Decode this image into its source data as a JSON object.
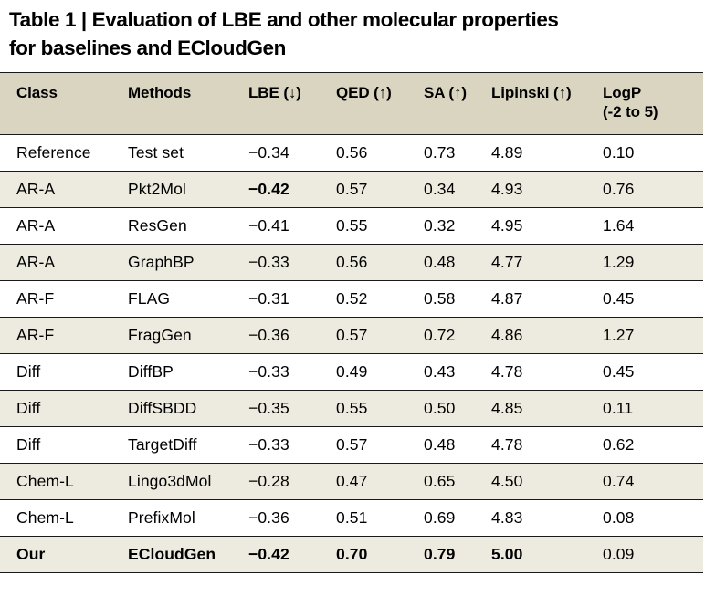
{
  "title": {
    "lines": [
      "Table 1 | Evaluation of LBE and other molecular properties",
      "for baselines and ECloudGen"
    ]
  },
  "table": {
    "columns": [
      {
        "label": "Class",
        "sublabel": ""
      },
      {
        "label": "Methods",
        "sublabel": ""
      },
      {
        "label": "LBE (↓)",
        "sublabel": ""
      },
      {
        "label": "QED (↑)",
        "sublabel": ""
      },
      {
        "label": "SA (↑)",
        "sublabel": ""
      },
      {
        "label": "Lipinski (↑)",
        "sublabel": ""
      },
      {
        "label": "LogP",
        "sublabel": "(-2 to 5)"
      }
    ],
    "rows": [
      {
        "cells": [
          "Reference",
          "Test set",
          "−0.34",
          "0.56",
          "0.73",
          "4.89",
          "0.10"
        ],
        "bold_cells": []
      },
      {
        "cells": [
          "AR-A",
          "Pkt2Mol",
          "−0.42",
          "0.57",
          "0.34",
          "4.93",
          "0.76"
        ],
        "bold_cells": [
          2
        ]
      },
      {
        "cells": [
          "AR-A",
          "ResGen",
          "−0.41",
          "0.55",
          "0.32",
          "4.95",
          "1.64"
        ],
        "bold_cells": []
      },
      {
        "cells": [
          "AR-A",
          "GraphBP",
          "−0.33",
          "0.56",
          "0.48",
          "4.77",
          "1.29"
        ],
        "bold_cells": []
      },
      {
        "cells": [
          "AR-F",
          "FLAG",
          "−0.31",
          "0.52",
          "0.58",
          "4.87",
          "0.45"
        ],
        "bold_cells": []
      },
      {
        "cells": [
          "AR-F",
          "FragGen",
          "−0.36",
          "0.57",
          "0.72",
          "4.86",
          "1.27"
        ],
        "bold_cells": []
      },
      {
        "cells": [
          "Diff",
          "DiffBP",
          "−0.33",
          "0.49",
          "0.43",
          "4.78",
          "0.45"
        ],
        "bold_cells": []
      },
      {
        "cells": [
          "Diff",
          "DiffSBDD",
          "−0.35",
          "0.55",
          "0.50",
          "4.85",
          "0.11"
        ],
        "bold_cells": []
      },
      {
        "cells": [
          "Diff",
          "TargetDiff",
          "−0.33",
          "0.57",
          "0.48",
          "4.78",
          "0.62"
        ],
        "bold_cells": []
      },
      {
        "cells": [
          "Chem-L",
          "Lingo3dMol",
          "−0.28",
          "0.47",
          "0.65",
          "4.50",
          "0.74"
        ],
        "bold_cells": []
      },
      {
        "cells": [
          "Chem-L",
          "PrefixMol",
          "−0.36",
          "0.51",
          "0.69",
          "4.83",
          "0.08"
        ],
        "bold_cells": []
      },
      {
        "cells": [
          "Our",
          "ECloudGen",
          "−0.42",
          "0.70",
          "0.79",
          "5.00",
          "0.09"
        ],
        "bold_cells": [
          0,
          1,
          2,
          3,
          4,
          5
        ]
      }
    ]
  },
  "colors": {
    "header_bg": "#d9d5c1",
    "stripe_bg": "#edebdf",
    "rule": "#1a1a1a",
    "text": "#000000",
    "page_bg": "#ffffff"
  }
}
